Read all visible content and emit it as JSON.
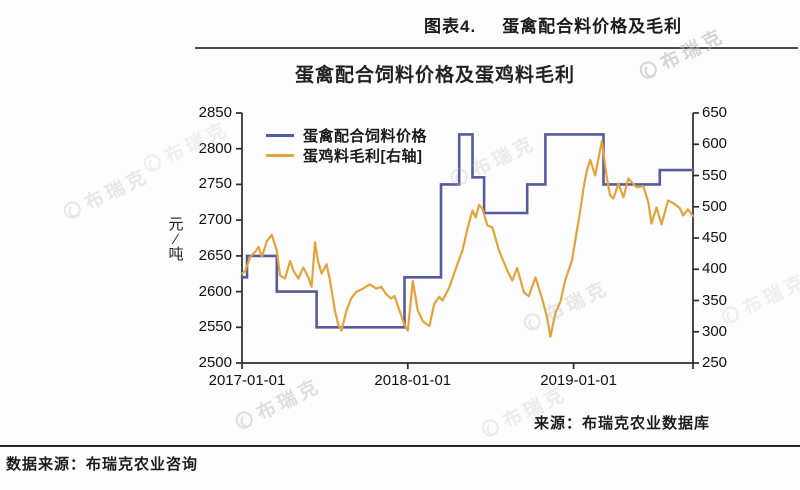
{
  "header": {
    "figure_label": "图表4.",
    "figure_title": "蛋禽配合料价格及毛利"
  },
  "watermark": {
    "text": "布瑞克"
  },
  "source_note": "来源：布瑞克农业数据库",
  "footer": {
    "data_source": "数据来源：布瑞克农业咨询"
  },
  "chart_data": {
    "type": "line",
    "title": "蛋禽配合饲料价格及蛋鸡料毛利",
    "grid": false,
    "legend_position": "top-left-inside",
    "axis_color": "#2b2b2b",
    "x_unit": "date",
    "t_max": 2.72,
    "x_ticks": [
      {
        "t": 0,
        "label": "2017-01-01"
      },
      {
        "t": 1,
        "label": "2018-01-01"
      },
      {
        "t": 2,
        "label": "2019-01-01"
      }
    ],
    "left_axis": {
      "unit": "元/吨",
      "unit_lines": [
        "元",
        "∕",
        "吨"
      ],
      "min": 2500,
      "max": 2850,
      "ticks": [
        2850,
        2800,
        2750,
        2700,
        2650,
        2600,
        2550,
        2500
      ]
    },
    "right_axis": {
      "unit": "",
      "min": 250,
      "max": 650,
      "ticks": [
        650,
        600,
        550,
        500,
        450,
        400,
        350,
        300,
        250
      ]
    },
    "series": [
      {
        "id": "price",
        "name": "蛋禽配合饲料价格",
        "axis": "left",
        "color": "#565a9f",
        "style": "step",
        "points": [
          [
            0.0,
            2620
          ],
          [
            0.03,
            2620
          ],
          [
            0.03,
            2650
          ],
          [
            0.21,
            2650
          ],
          [
            0.21,
            2600
          ],
          [
            0.45,
            2600
          ],
          [
            0.45,
            2550
          ],
          [
            0.98,
            2550
          ],
          [
            0.98,
            2620
          ],
          [
            1.2,
            2620
          ],
          [
            1.2,
            2750
          ],
          [
            1.31,
            2750
          ],
          [
            1.31,
            2820
          ],
          [
            1.39,
            2820
          ],
          [
            1.39,
            2760
          ],
          [
            1.46,
            2760
          ],
          [
            1.46,
            2710
          ],
          [
            1.72,
            2710
          ],
          [
            1.72,
            2750
          ],
          [
            1.83,
            2750
          ],
          [
            1.83,
            2820
          ],
          [
            2.18,
            2820
          ],
          [
            2.18,
            2750
          ],
          [
            2.52,
            2750
          ],
          [
            2.52,
            2770
          ],
          [
            2.72,
            2770
          ]
        ]
      },
      {
        "id": "margin",
        "name": "蛋鸡料毛利[右轴]",
        "axis": "right",
        "color": "#e5a23c",
        "style": "line",
        "points": [
          [
            0.0,
            393
          ],
          [
            0.02,
            398
          ],
          [
            0.05,
            420
          ],
          [
            0.08,
            428
          ],
          [
            0.1,
            436
          ],
          [
            0.12,
            420
          ],
          [
            0.15,
            445
          ],
          [
            0.18,
            455
          ],
          [
            0.21,
            430
          ],
          [
            0.23,
            390
          ],
          [
            0.26,
            385
          ],
          [
            0.29,
            413
          ],
          [
            0.31,
            398
          ],
          [
            0.34,
            385
          ],
          [
            0.37,
            403
          ],
          [
            0.4,
            387
          ],
          [
            0.42,
            372
          ],
          [
            0.44,
            443
          ],
          [
            0.46,
            411
          ],
          [
            0.48,
            393
          ],
          [
            0.51,
            408
          ],
          [
            0.53,
            383
          ],
          [
            0.56,
            334
          ],
          [
            0.58,
            312
          ],
          [
            0.6,
            302
          ],
          [
            0.63,
            334
          ],
          [
            0.66,
            354
          ],
          [
            0.69,
            364
          ],
          [
            0.73,
            369
          ],
          [
            0.77,
            376
          ],
          [
            0.81,
            369
          ],
          [
            0.84,
            372
          ],
          [
            0.87,
            360
          ],
          [
            0.9,
            353
          ],
          [
            0.92,
            357
          ],
          [
            0.95,
            334
          ],
          [
            0.98,
            311
          ],
          [
            1.0,
            302
          ],
          [
            1.03,
            381
          ],
          [
            1.06,
            334
          ],
          [
            1.09,
            317
          ],
          [
            1.13,
            309
          ],
          [
            1.16,
            345
          ],
          [
            1.19,
            356
          ],
          [
            1.21,
            350
          ],
          [
            1.25,
            371
          ],
          [
            1.3,
            409
          ],
          [
            1.33,
            430
          ],
          [
            1.36,
            465
          ],
          [
            1.39,
            494
          ],
          [
            1.41,
            483
          ],
          [
            1.43,
            503
          ],
          [
            1.45,
            497
          ],
          [
            1.48,
            470
          ],
          [
            1.51,
            467
          ],
          [
            1.55,
            430
          ],
          [
            1.6,
            398
          ],
          [
            1.63,
            382
          ],
          [
            1.66,
            402
          ],
          [
            1.7,
            363
          ],
          [
            1.73,
            357
          ],
          [
            1.77,
            387
          ],
          [
            1.81,
            353
          ],
          [
            1.84,
            323
          ],
          [
            1.86,
            292
          ],
          [
            1.89,
            330
          ],
          [
            1.92,
            348
          ],
          [
            1.95,
            383
          ],
          [
            1.99,
            414
          ],
          [
            2.02,
            462
          ],
          [
            2.04,
            494
          ],
          [
            2.06,
            531
          ],
          [
            2.08,
            558
          ],
          [
            2.1,
            575
          ],
          [
            2.13,
            550
          ],
          [
            2.17,
            605
          ],
          [
            2.2,
            547
          ],
          [
            2.22,
            518
          ],
          [
            2.24,
            513
          ],
          [
            2.27,
            537
          ],
          [
            2.3,
            515
          ],
          [
            2.33,
            545
          ],
          [
            2.38,
            531
          ],
          [
            2.42,
            533
          ],
          [
            2.45,
            508
          ],
          [
            2.47,
            473
          ],
          [
            2.5,
            499
          ],
          [
            2.53,
            472
          ],
          [
            2.57,
            510
          ],
          [
            2.6,
            506
          ],
          [
            2.64,
            498
          ],
          [
            2.66,
            486
          ],
          [
            2.69,
            496
          ],
          [
            2.72,
            485
          ]
        ]
      }
    ]
  }
}
